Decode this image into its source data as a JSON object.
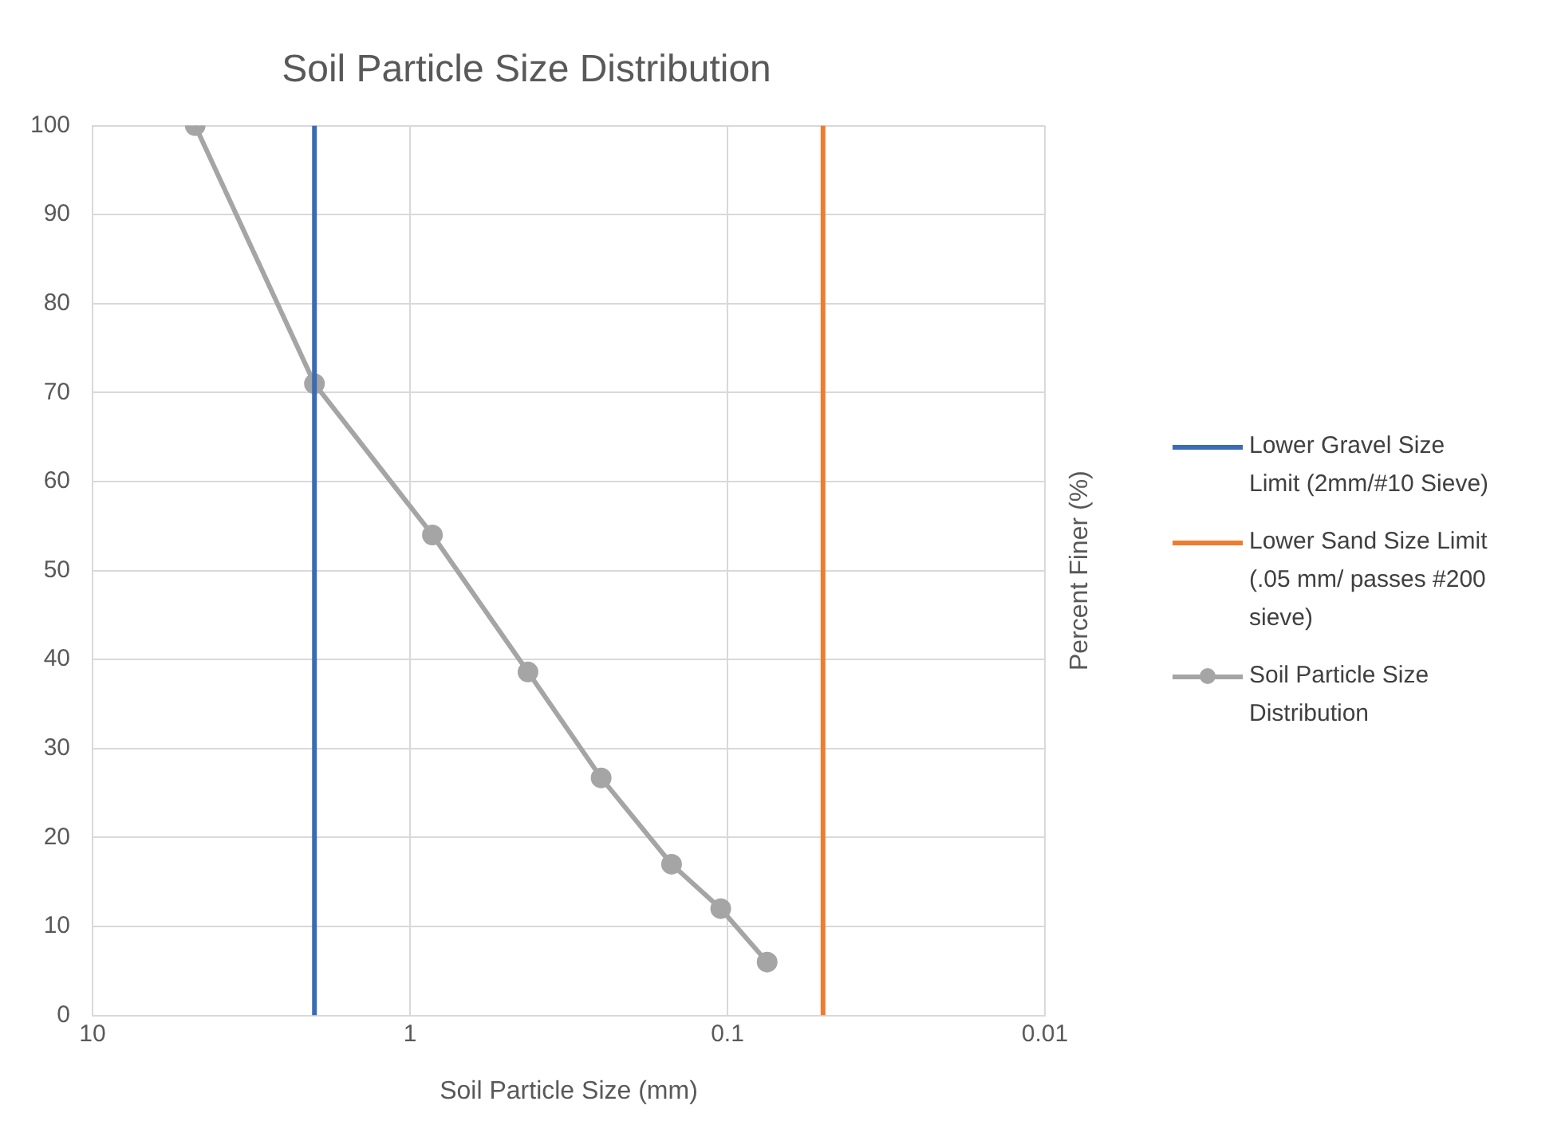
{
  "chart_data": {
    "type": "line",
    "title": "Soil Particle Size Distribution",
    "xlabel": "Soil Particle Size (mm)",
    "ylabel": "Percent Finer (%)",
    "log": "x",
    "xlim": [
      10,
      0.01
    ],
    "xticks": [
      10,
      1,
      0.1,
      0.01
    ],
    "ylim": [
      0,
      100
    ],
    "yticks": [
      0,
      10,
      20,
      30,
      40,
      50,
      60,
      70,
      80,
      90,
      100
    ],
    "grid": true,
    "legend": "right",
    "series": [
      {
        "name": "Lower Gravel Size Limit (2mm/#10 Sieve)",
        "color": "#3a6bb5",
        "x": [
          2,
          2
        ],
        "values": [
          0,
          100
        ],
        "marker": "none"
      },
      {
        "name": "Lower Sand Size Limit (.05 mm/ passes #200 sieve)",
        "color": "#ed7d31",
        "x": [
          0.05,
          0.05
        ],
        "values": [
          0,
          100
        ],
        "marker": "none"
      },
      {
        "name": "Soil Particle Size Distribution",
        "color": "#a5a5a5",
        "x": [
          4.75,
          2,
          0.85,
          0.425,
          0.25,
          0.15,
          0.105,
          0.075
        ],
        "values": [
          100,
          71,
          54,
          38.6,
          26.7,
          17,
          12,
          6
        ],
        "marker": "circle"
      }
    ]
  }
}
